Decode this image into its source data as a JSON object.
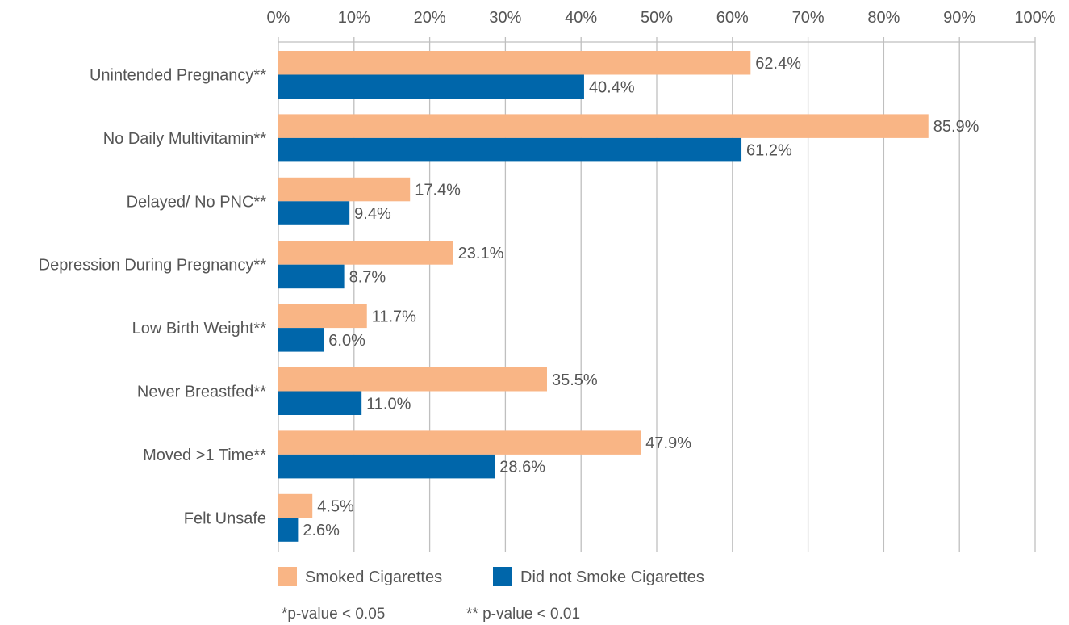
{
  "chart_data": {
    "type": "bar",
    "orientation": "horizontal",
    "categories": [
      "Unintended Pregnancy**",
      "No Daily Multivitamin**",
      "Delayed/ No PNC**",
      "Depression During Pregnancy**",
      "Low Birth Weight**",
      "Never Breastfed**",
      "Moved >1 Time**",
      "Felt Unsafe"
    ],
    "series": [
      {
        "name": "Smoked Cigarettes",
        "color": "#F9B585",
        "values": [
          62.4,
          85.9,
          17.4,
          23.1,
          11.7,
          35.5,
          47.9,
          4.5
        ],
        "labels": [
          "62.4%",
          "85.9%",
          "17.4%",
          "23.1%",
          "11.7%",
          "35.5%",
          "47.9%",
          "4.5%"
        ]
      },
      {
        "name": "Did not Smoke Cigarettes",
        "color": "#0066AA",
        "values": [
          40.4,
          61.2,
          9.4,
          8.7,
          6.0,
          11.0,
          28.6,
          2.6
        ],
        "labels": [
          "40.4%",
          "61.2%",
          "9.4%",
          "8.7%",
          "6.0%",
          "11.0%",
          "28.6%",
          "2.6%"
        ]
      }
    ],
    "xlim": [
      0,
      100
    ],
    "xticks": [
      0,
      10,
      20,
      30,
      40,
      50,
      60,
      70,
      80,
      90,
      100
    ],
    "xtick_labels": [
      "0%",
      "10%",
      "20%",
      "30%",
      "40%",
      "50%",
      "60%",
      "70%",
      "80%",
      "90%",
      "100%"
    ],
    "x_axis_position": "top",
    "grid": "vertical",
    "gridline_color": "#BFBFBF",
    "legend_position": "bottom-left",
    "title": "",
    "xlabel": "",
    "ylabel": ""
  },
  "footnotes": {
    "p05": "*p-value < 0.05",
    "p01": "** p-value < 0.01"
  }
}
